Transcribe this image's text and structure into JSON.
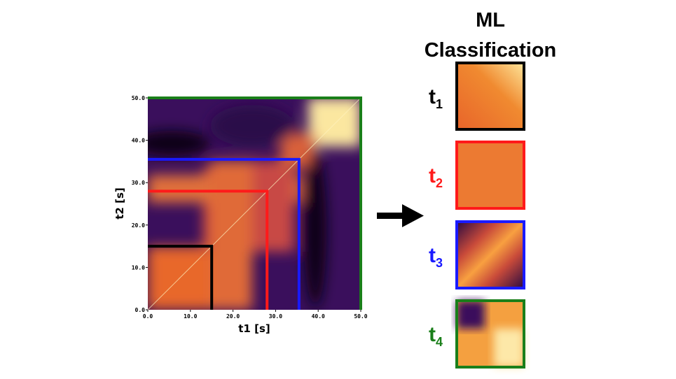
{
  "figure": {
    "left_plot": {
      "x_label": "t1 [s]",
      "y_label": "t2 [s]",
      "xlim": [
        0,
        50
      ],
      "ylim": [
        0,
        50
      ],
      "xticks": [
        {
          "value": 0,
          "label": "0.0"
        },
        {
          "value": 10,
          "label": "10.0"
        },
        {
          "value": 20,
          "label": "20.0"
        },
        {
          "value": 30,
          "label": "30.0"
        },
        {
          "value": 40,
          "label": "40.0"
        },
        {
          "value": 50,
          "label": "50.0"
        }
      ],
      "yticks": [
        {
          "value": 0,
          "label": "0.0"
        },
        {
          "value": 10,
          "label": "10.0"
        },
        {
          "value": 20,
          "label": "20.0"
        },
        {
          "value": 30,
          "label": "30.0"
        },
        {
          "value": 40,
          "label": "40.0"
        },
        {
          "value": 50,
          "label": "50.0"
        }
      ],
      "windows": [
        {
          "end": 15,
          "color": "#000000"
        },
        {
          "end": 28,
          "color": "#ff1a1a"
        },
        {
          "end": 35.5,
          "color": "#1a1aff"
        },
        {
          "end": 50,
          "color": "#1a7f1a"
        }
      ]
    },
    "classification": {
      "title_lines": [
        "ML",
        "Classification"
      ],
      "labels": [
        {
          "text": "t",
          "sub": "1",
          "color": "#000000"
        },
        {
          "text": "t",
          "sub": "2",
          "color": "#ff1a1a"
        },
        {
          "text": "t",
          "sub": "3",
          "color": "#1a1aff"
        },
        {
          "text": "t",
          "sub": "4",
          "color": "#1a7f1a"
        }
      ]
    }
  }
}
